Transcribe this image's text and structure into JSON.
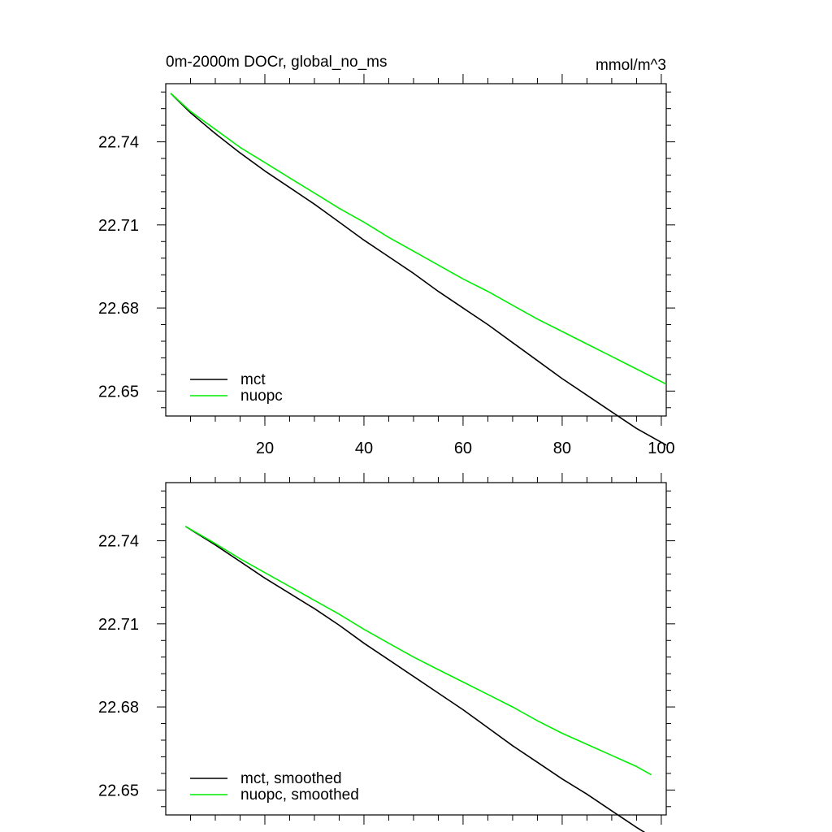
{
  "figure": {
    "title_left": "0m-2000m DOCr, global_no_ms",
    "title_right": "mmol/m^3"
  },
  "colors": {
    "mct": "#000000",
    "nuopc": "#00ee00",
    "axis": "#000000"
  },
  "chart_data": [
    {
      "type": "line",
      "title": "0m-2000m DOCr, global_no_ms",
      "units": "mmol/m^3",
      "xlim": [
        0,
        101
      ],
      "ylim": [
        22.641,
        22.761
      ],
      "x_ticks": [
        20,
        40,
        60,
        80,
        100
      ],
      "x_tick_labels": [
        "20",
        "40",
        "60",
        "80",
        "100"
      ],
      "y_ticks": [
        22.74,
        22.71,
        22.68,
        22.65
      ],
      "y_tick_labels": [
        "22.74",
        "22.71",
        "22.68",
        "22.65"
      ],
      "legend": "bottom-left",
      "series": [
        {
          "name": "mct",
          "color": "#000000",
          "x": [
            1,
            5,
            10,
            15,
            20,
            25,
            30,
            35,
            40,
            45,
            50,
            55,
            60,
            65,
            70,
            75,
            80,
            85,
            90,
            95,
            101
          ],
          "y": [
            22.7575,
            22.7505,
            22.743,
            22.736,
            22.7295,
            22.7235,
            22.7175,
            22.711,
            22.7045,
            22.6985,
            22.6925,
            22.686,
            22.68,
            22.674,
            22.6675,
            22.661,
            22.6545,
            22.6485,
            22.6425,
            22.6365,
            22.6305
          ]
        },
        {
          "name": "nuopc",
          "color": "#00ee00",
          "x": [
            1,
            5,
            10,
            15,
            20,
            25,
            30,
            35,
            40,
            45,
            50,
            55,
            60,
            65,
            70,
            75,
            80,
            85,
            90,
            95,
            101
          ],
          "y": [
            22.7575,
            22.751,
            22.7445,
            22.738,
            22.7325,
            22.727,
            22.7215,
            22.716,
            22.711,
            22.7055,
            22.7005,
            22.6955,
            22.6905,
            22.686,
            22.681,
            22.676,
            22.6715,
            22.667,
            22.6625,
            22.658,
            22.6525
          ]
        }
      ]
    },
    {
      "type": "line",
      "title": "",
      "xlim": [
        0,
        101
      ],
      "ylim": [
        22.641,
        22.761
      ],
      "x_ticks": [
        20,
        40,
        60,
        80,
        100
      ],
      "x_tick_labels": [],
      "y_ticks": [
        22.74,
        22.71,
        22.68,
        22.65
      ],
      "y_tick_labels": [
        "22.74",
        "22.71",
        "22.68",
        "22.65"
      ],
      "legend": "bottom-left",
      "series": [
        {
          "name": "mct, smoothed",
          "color": "#000000",
          "x": [
            4,
            10,
            15,
            20,
            25,
            30,
            35,
            40,
            45,
            50,
            55,
            60,
            65,
            70,
            75,
            80,
            85,
            90,
            95,
            98
          ],
          "y": [
            22.7452,
            22.7385,
            22.7325,
            22.7265,
            22.721,
            22.7155,
            22.7095,
            22.703,
            22.697,
            22.691,
            22.685,
            22.679,
            22.6725,
            22.666,
            22.66,
            22.654,
            22.6485,
            22.6425,
            22.6365,
            22.6332
          ]
        },
        {
          "name": "nuopc, smoothed",
          "color": "#00ee00",
          "x": [
            4,
            10,
            15,
            20,
            25,
            30,
            35,
            40,
            45,
            50,
            55,
            60,
            65,
            70,
            75,
            80,
            85,
            90,
            95,
            98
          ],
          "y": [
            22.7452,
            22.739,
            22.7335,
            22.7285,
            22.7235,
            22.7185,
            22.7135,
            22.708,
            22.703,
            22.698,
            22.6935,
            22.689,
            22.6845,
            22.68,
            22.675,
            22.6705,
            22.6665,
            22.6625,
            22.6585,
            22.6555
          ]
        }
      ]
    }
  ]
}
